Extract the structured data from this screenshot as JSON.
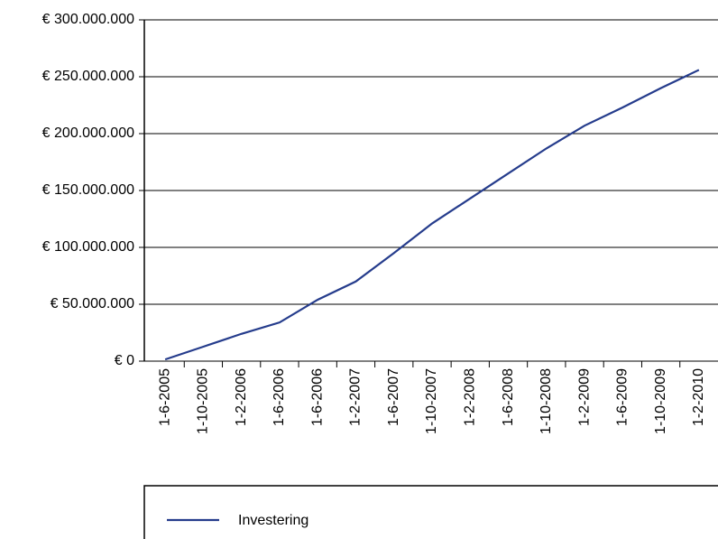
{
  "chart_data": {
    "type": "line",
    "categories": [
      "1-6-2005",
      "1-10-2005",
      "1-2-2006",
      "1-6-2006",
      "1-6-2006",
      "1-2-2007",
      "1-6-2007",
      "1-10-2007",
      "1-2-2008",
      "1-6-2008",
      "1-10-2008",
      "1-2-2009",
      "1-6-2009",
      "1-10-2009",
      "1-2-2010"
    ],
    "series": [
      {
        "name": "Investering",
        "color": "#253c8c",
        "values": [
          1500000,
          12700000,
          24000000,
          34000000,
          54000000,
          70000000,
          95000000,
          121000000,
          143000000,
          165000000,
          187000000,
          207000000,
          223000000,
          240000000,
          256000000
        ]
      }
    ],
    "ylim": [
      0,
      300000000
    ],
    "yticks": [
      {
        "value": 0,
        "label": "€ 0"
      },
      {
        "value": 50000000,
        "label": "€ 50.000.000"
      },
      {
        "value": 100000000,
        "label": "€ 100.000.000"
      },
      {
        "value": 150000000,
        "label": "€ 150.000.000"
      },
      {
        "value": 200000000,
        "label": "€ 200.000.000"
      },
      {
        "value": 250000000,
        "label": "€ 250.000.000"
      },
      {
        "value": 300000000,
        "label": "€ 300.000.000"
      }
    ],
    "grid": true,
    "legend": "bottom"
  }
}
